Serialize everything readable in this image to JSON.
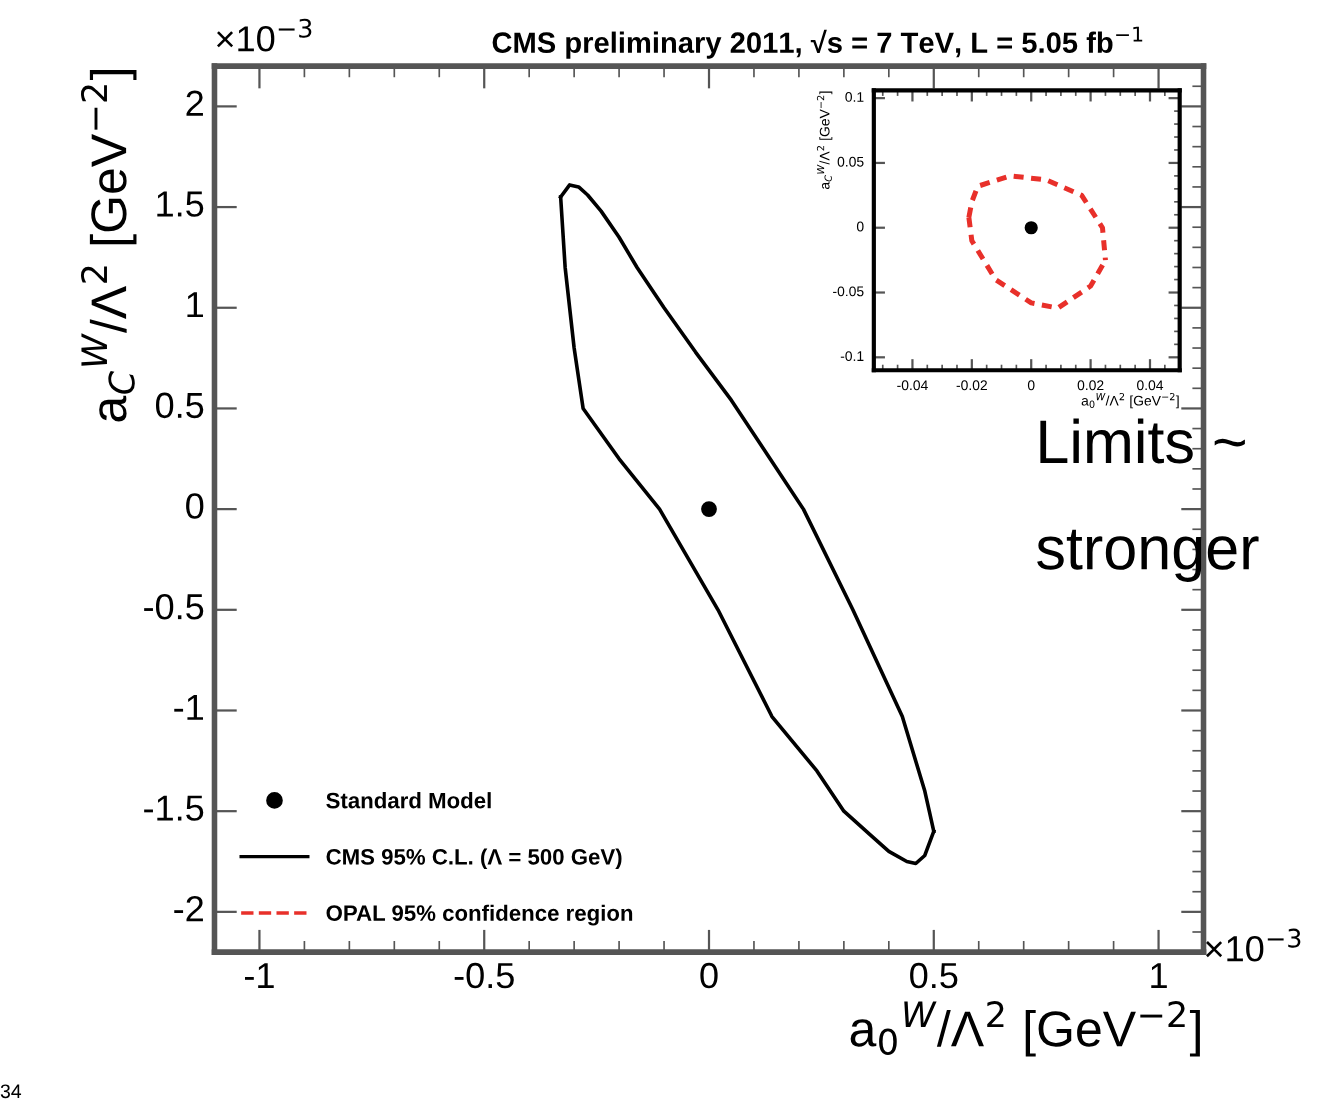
{
  "chart_data": [
    {
      "type": "line",
      "title": "CMS preliminary 2011, √s = 7 TeV, L = 5.05 fb$^{−1}$",
      "xlabel": "a$_{0}$$^{W}$/Λ$^{2}$ [GeV$^{−2}$]",
      "ylabel": "a$_{C}$$^{W}$/Λ$^{2}$ [GeV$^{−2}$]",
      "xlim": [
        -1.1,
        1.1
      ],
      "ylim": [
        -2.2,
        2.2
      ],
      "xticks": [
        -1,
        -0.5,
        0,
        0.5,
        1
      ],
      "yticks": [
        -2,
        -1.5,
        -1,
        -0.5,
        0,
        0.5,
        1,
        1.5,
        2
      ],
      "legend": "bottom left",
      "annotations": [
        "×10$^{−3}$",
        "×10$^{−3}$",
        "Limits ~",
        "stronger",
        "34"
      ],
      "series": [
        {
          "name": "Standard Model",
          "type": "scatter",
          "marker": "circle",
          "color": "#000000",
          "x": [
            0
          ],
          "values": [
            0
          ]
        },
        {
          "name": "CMS 95% C.L. (Λ = 500 GeV)",
          "line_style": "solid",
          "color": "#000000",
          "x": [
            -0.33,
            -0.31,
            -0.29,
            -0.27,
            -0.24,
            -0.2,
            -0.16,
            -0.1,
            -0.03,
            0.05,
            0.13,
            0.21,
            0.32,
            0.43,
            0.48,
            0.49,
            0.5
          ],
          "values": [
            1.55,
            1.61,
            1.6,
            1.56,
            1.48,
            1.35,
            1.2,
            1.0,
            0.78,
            0.54,
            0.27,
            0.0,
            -0.5,
            -1.03,
            -1.4,
            -1.5,
            -1.6
          ]
        },
        {
          "line_style": "solid",
          "color": "#000000",
          "x": [
            -0.33,
            -0.32,
            -0.3,
            -0.28,
            -0.2,
            -0.11,
            0.02,
            0.14,
            0.24,
            0.3,
            0.36,
            0.4,
            0.44,
            0.46,
            0.48,
            0.5
          ],
          "values": [
            1.55,
            1.2,
            0.8,
            0.5,
            0.25,
            0.0,
            -0.5,
            -1.03,
            -1.3,
            -1.5,
            -1.62,
            -1.7,
            -1.75,
            -1.76,
            -1.72,
            -1.6
          ]
        }
      ]
    },
    {
      "type": "line",
      "xlabel": "a$_{0}$$^{W}$/Λ$^{2}$ [GeV$^{−2}$]",
      "ylabel": "a$_{C}$$^{W}$/Λ$^{2}$ [GeV$^{−2}$]",
      "xlim": [
        -0.053,
        0.05
      ],
      "ylim": [
        -0.11,
        0.106
      ],
      "xticks": [
        -0.04,
        -0.02,
        0,
        0.02,
        0.04
      ],
      "yticks": [
        -0.1,
        -0.05,
        0,
        0.05,
        0.1
      ],
      "series": [
        {
          "type": "scatter",
          "marker": "circle",
          "color": "#000000",
          "x": [
            0
          ],
          "values": [
            0
          ]
        },
        {
          "name": "OPAL 95% confidence region",
          "line_style": "dashed",
          "color": "#e8302a",
          "x": [
            -0.021,
            -0.02,
            -0.018,
            -0.007,
            0.005,
            0.017,
            0.024,
            0.025,
            null,
            -0.021,
            -0.02,
            -0.012,
            0.0,
            0.009,
            0.02,
            0.025
          ],
          "values": [
            0.008,
            0.02,
            0.032,
            0.04,
            0.037,
            0.025,
            0.0,
            -0.025,
            null,
            0.008,
            -0.01,
            -0.04,
            -0.058,
            -0.062,
            -0.045,
            -0.025
          ]
        }
      ]
    }
  ]
}
